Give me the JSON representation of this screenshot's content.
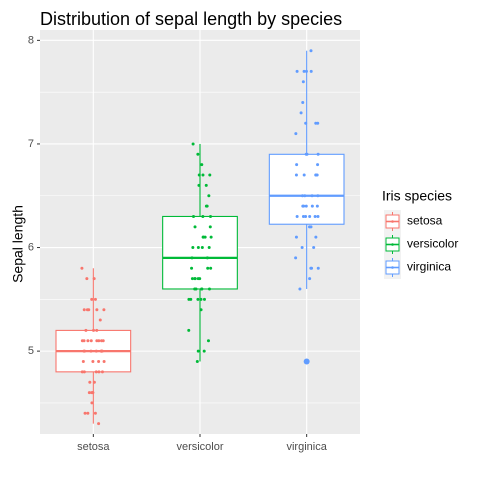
{
  "chart_data": {
    "type": "box",
    "title": "Distribution of sepal length by species",
    "xlabel": "",
    "ylabel": "Sepal length",
    "categories": [
      "setosa",
      "versicolor",
      "virginica"
    ],
    "y_ticks": [
      5,
      6,
      7,
      8
    ],
    "ylim": [
      4.2,
      8.1
    ],
    "grid": true,
    "legend": {
      "title": "Iris species",
      "position": "right"
    },
    "series": [
      {
        "name": "setosa",
        "color": "#F8766D",
        "box": {
          "min": 4.3,
          "q1": 4.8,
          "median": 5.0,
          "q3": 5.2,
          "max": 5.8
        },
        "outliers": [],
        "points": [
          5.1,
          4.9,
          4.7,
          4.6,
          5.0,
          5.4,
          4.6,
          5.0,
          4.4,
          4.9,
          5.4,
          4.8,
          4.8,
          4.3,
          5.8,
          5.7,
          5.4,
          5.1,
          5.7,
          5.1,
          5.4,
          5.1,
          4.6,
          5.1,
          4.8,
          5.0,
          5.0,
          5.2,
          5.2,
          4.7,
          4.8,
          5.4,
          5.2,
          5.5,
          4.9,
          5.0,
          5.5,
          4.9,
          4.4,
          5.1,
          5.0,
          4.5,
          4.4,
          5.0,
          5.1,
          4.8,
          5.1,
          4.6,
          5.3,
          5.0
        ]
      },
      {
        "name": "versicolor",
        "color": "#00BA38",
        "box": {
          "min": 4.9,
          "q1": 5.6,
          "median": 5.9,
          "q3": 6.3,
          "max": 7.0
        },
        "outliers": [],
        "points": [
          7.0,
          6.4,
          6.9,
          5.5,
          6.5,
          5.7,
          6.3,
          4.9,
          6.6,
          5.2,
          5.0,
          5.9,
          6.0,
          6.1,
          5.6,
          6.7,
          5.6,
          5.8,
          6.2,
          5.6,
          5.9,
          6.1,
          6.3,
          6.1,
          6.4,
          6.6,
          6.8,
          6.7,
          6.0,
          5.7,
          5.5,
          5.5,
          5.8,
          6.0,
          5.4,
          6.0,
          6.7,
          6.3,
          5.6,
          5.5,
          5.5,
          6.1,
          5.8,
          5.0,
          5.6,
          5.7,
          5.7,
          6.2,
          5.1,
          5.7
        ]
      },
      {
        "name": "virginica",
        "color": "#619CFF",
        "box": {
          "min": 5.6,
          "q1": 6.225,
          "median": 6.5,
          "q3": 6.9,
          "max": 7.9
        },
        "outliers": [
          4.9
        ],
        "points": [
          6.3,
          5.8,
          7.1,
          6.3,
          6.5,
          7.6,
          4.9,
          7.3,
          6.7,
          7.2,
          6.5,
          6.4,
          6.8,
          5.7,
          5.8,
          6.4,
          6.5,
          7.7,
          7.7,
          6.0,
          6.9,
          5.6,
          7.7,
          6.3,
          6.7,
          7.2,
          6.2,
          6.1,
          6.4,
          7.2,
          7.4,
          7.9,
          6.4,
          6.3,
          6.1,
          7.7,
          6.3,
          6.4,
          6.0,
          6.9,
          6.7,
          6.9,
          5.8,
          6.8,
          6.7,
          6.7,
          6.3,
          6.5,
          6.2,
          5.9
        ]
      }
    ]
  }
}
